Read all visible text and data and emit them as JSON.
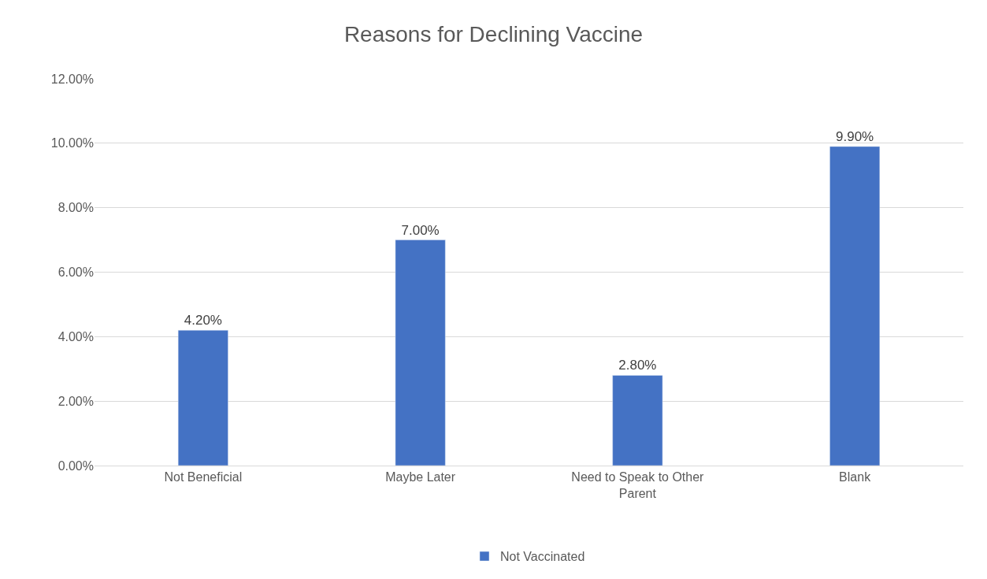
{
  "chart_data": {
    "type": "bar",
    "title": "Reasons for Declining Vaccine",
    "categories": [
      "Not Beneficial",
      "Maybe Later",
      "Need to Speak to Other Parent",
      "Blank"
    ],
    "series": [
      {
        "name": "Not Vaccinated",
        "color": "#4472c4",
        "values": [
          4.2,
          7.0,
          2.8,
          9.9
        ],
        "value_labels": [
          "4.20%",
          "7.00%",
          "2.80%",
          "9.90%"
        ]
      }
    ],
    "ylim": [
      0,
      12
    ],
    "yticks": [
      {
        "value": 0,
        "label": "0.00%"
      },
      {
        "value": 2,
        "label": "2.00%"
      },
      {
        "value": 4,
        "label": "4.00%"
      },
      {
        "value": 6,
        "label": "6.00%"
      },
      {
        "value": 8,
        "label": "8.00%"
      },
      {
        "value": 10,
        "label": "10.00%"
      },
      {
        "value": 12,
        "label": "12.00%"
      }
    ],
    "grid": "y",
    "legend": "bottom"
  }
}
